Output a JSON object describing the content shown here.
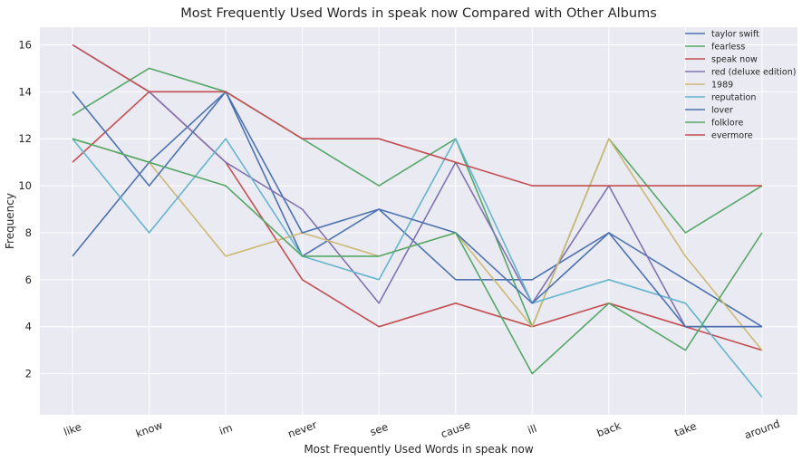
{
  "chart_data": {
    "type": "line",
    "title": "Most Frequently Used Words in speak now Compared with Other Albums",
    "xlabel": "Most Frequently Used Words in speak now",
    "ylabel": "Frequency",
    "categories": [
      "like",
      "know",
      "im",
      "never",
      "see",
      "cause",
      "ill",
      "back",
      "take",
      "around"
    ],
    "yticks": [
      2,
      4,
      6,
      8,
      10,
      12,
      14,
      16
    ],
    "ylim": [
      0.25,
      16.75
    ],
    "grid": true,
    "legend_position": "top-right",
    "series": [
      {
        "name": "taylor swift",
        "color": "#4c72b0",
        "values": [
          7,
          11,
          14,
          7,
          9,
          6,
          6,
          8,
          6,
          4
        ]
      },
      {
        "name": "fearless",
        "color": "#55a868",
        "values": [
          13,
          15,
          14,
          12,
          10,
          12,
          4,
          12,
          8,
          10
        ]
      },
      {
        "name": "speak now",
        "color": "#c44e52",
        "values": [
          11,
          14,
          11,
          6,
          4,
          5,
          4,
          5,
          4,
          3
        ]
      },
      {
        "name": "red (deluxe edition)",
        "color": "#8172b2",
        "values": [
          16,
          14,
          11,
          9,
          5,
          11,
          5,
          10,
          4,
          4
        ]
      },
      {
        "name": "1989",
        "color": "#ccb974",
        "values": [
          12,
          11,
          7,
          8,
          7,
          8,
          4,
          12,
          7,
          3
        ]
      },
      {
        "name": "reputation",
        "color": "#64b5cd",
        "values": [
          12,
          8,
          12,
          7,
          6,
          12,
          5,
          6,
          5,
          1
        ]
      },
      {
        "name": "lover",
        "color": "#4c72b0",
        "values": [
          14,
          10,
          14,
          8,
          9,
          8,
          5,
          8,
          4,
          4
        ]
      },
      {
        "name": "folklore",
        "color": "#55a868",
        "values": [
          12,
          11,
          10,
          7,
          7,
          8,
          2,
          5,
          3,
          8
        ]
      },
      {
        "name": "evermore",
        "color": "#c44e52",
        "values": [
          16,
          14,
          14,
          12,
          12,
          11,
          10,
          10,
          10,
          10
        ]
      }
    ]
  }
}
